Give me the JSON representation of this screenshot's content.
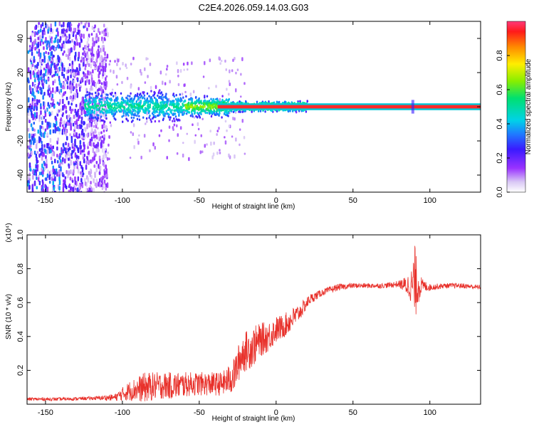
{
  "title": "C2E4.2026.059.14.03.G03",
  "chart_data": [
    {
      "type": "heatmap",
      "xlabel": "Height of straight line (km)",
      "ylabel": "Frequency (Hz)",
      "xlim": [
        -162,
        133
      ],
      "ylim": [
        -50,
        50
      ],
      "xticks": [
        -150,
        -100,
        -50,
        0,
        50,
        100
      ],
      "yticks": [
        -40,
        -20,
        0,
        20,
        40
      ],
      "colorbar": {
        "label": "Normalized spectral amplitude",
        "range": [
          0,
          1
        ],
        "ticks": [
          0.0,
          0.2,
          0.4,
          0.6,
          0.8
        ]
      }
    },
    {
      "type": "line",
      "xlabel": "Height of straight line (km)",
      "ylabel": "SNR (10 * v/v)",
      "scale_note": "(x10⁴)",
      "xlim": [
        -162,
        133
      ],
      "ylim": [
        0,
        1.0
      ],
      "xticks": [
        -150,
        -100,
        -50,
        0,
        50,
        100
      ],
      "yticks": [
        0.2,
        0.4,
        0.6,
        0.8,
        1.0
      ],
      "color": "#e8302a",
      "series": [
        {
          "name": "SNR",
          "x": [
            -162,
            -140,
            -120,
            -105,
            -95,
            -85,
            -75,
            -65,
            -55,
            -45,
            -35,
            -28,
            -22,
            -15,
            -10,
            -5,
            0,
            5,
            10,
            15,
            22,
            30,
            40,
            50,
            60,
            70,
            80,
            85,
            88,
            90,
            92,
            95,
            100,
            110,
            120,
            133
          ],
          "mean": [
            0.03,
            0.03,
            0.035,
            0.04,
            0.08,
            0.1,
            0.11,
            0.11,
            0.12,
            0.12,
            0.12,
            0.16,
            0.3,
            0.34,
            0.38,
            0.4,
            0.44,
            0.46,
            0.5,
            0.54,
            0.62,
            0.66,
            0.69,
            0.7,
            0.7,
            0.7,
            0.71,
            0.7,
            0.7,
            0.71,
            0.7,
            0.7,
            0.69,
            0.7,
            0.7,
            0.69
          ],
          "amp": [
            0.01,
            0.01,
            0.01,
            0.02,
            0.06,
            0.09,
            0.08,
            0.08,
            0.07,
            0.07,
            0.07,
            0.1,
            0.12,
            0.12,
            0.1,
            0.09,
            0.08,
            0.07,
            0.07,
            0.05,
            0.03,
            0.02,
            0.02,
            0.015,
            0.015,
            0.015,
            0.02,
            0.06,
            0.1,
            0.25,
            0.12,
            0.04,
            0.02,
            0.015,
            0.015,
            0.015
          ]
        }
      ]
    }
  ]
}
